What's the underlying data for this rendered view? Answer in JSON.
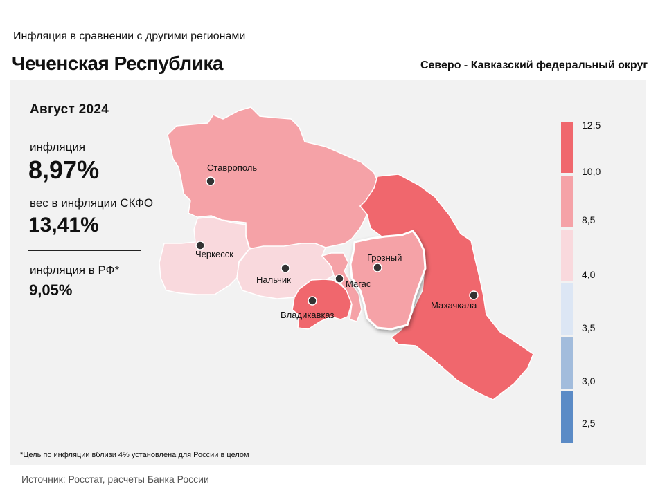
{
  "header": {
    "subtitle": "Инфляция в сравнении с другими регионами",
    "title": "Чеченская Республика",
    "district": "Северо - Кавказский федеральный округ"
  },
  "stats": {
    "period": "Август 2024",
    "inflation_label": "инфляция",
    "inflation_value": "8,97%",
    "weight_label": "вес в инфляции СКФО",
    "weight_value": "13,41%",
    "rf_label": "инфляция в РФ*",
    "rf_value": "9,05%"
  },
  "map": {
    "cities": [
      "Ставрополь",
      "Черкесск",
      "Нальчик",
      "Магас",
      "Грозный",
      "Владикавказ",
      "Махачкала"
    ],
    "colors": {
      "low": "#f9d9dd",
      "mid": "#f5a2a7",
      "high": "#f0676d"
    }
  },
  "legend": {
    "labels": [
      "12,5",
      "10,0",
      "8,5",
      "4,0",
      "3,5",
      "3,0",
      "2,5"
    ],
    "colors": [
      "#f0676d",
      "#f5a2a7",
      "#f9d9dd",
      "#dce6f4",
      "#a2bcdc",
      "#5b8bc6"
    ]
  },
  "footnote": "*Цель по инфляции вблизи 4% установлена для России в целом",
  "source": "Источник: Росстат, расчеты Банка России"
}
